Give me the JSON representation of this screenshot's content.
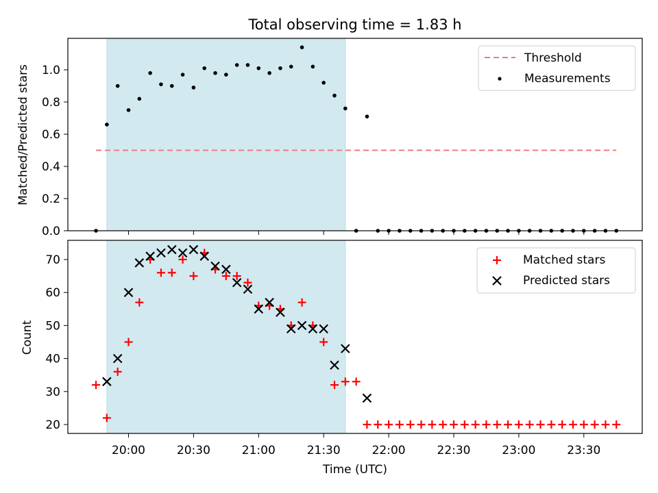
{
  "chart_data": [
    {
      "type": "scatter",
      "title": "Total observing time = 1.83 h",
      "ylabel": "Matched/Predicted stars",
      "xlabel": "",
      "ylim": [
        0,
        1.2
      ],
      "yticks": [
        "0.0",
        "0.2",
        "0.4",
        "0.6",
        "0.8",
        "1.0"
      ],
      "shaded_interval": {
        "start": "19:50",
        "end": "21:40",
        "color": "#d3e9f0"
      },
      "threshold": {
        "name": "Threshold",
        "value": 0.5,
        "x_start": "19:45",
        "x_end": "23:45",
        "color": "#f07a7a",
        "style": "dashed"
      },
      "series": [
        {
          "name": "Measurements",
          "color": "#000000",
          "marker": "dot",
          "x": [
            "19:45",
            "19:50",
            "19:55",
            "20:00",
            "20:05",
            "20:10",
            "20:15",
            "20:20",
            "20:25",
            "20:30",
            "20:35",
            "20:40",
            "20:45",
            "20:50",
            "20:55",
            "21:00",
            "21:05",
            "21:10",
            "21:15",
            "21:20",
            "21:25",
            "21:30",
            "21:35",
            "21:40",
            "21:50",
            "21:55",
            "22:00",
            "22:05",
            "22:10",
            "22:15",
            "22:20",
            "22:25",
            "22:30",
            "22:35",
            "22:40",
            "22:45",
            "22:50",
            "22:55",
            "23:00",
            "23:05",
            "23:10",
            "23:15",
            "23:20",
            "23:25",
            "23:30",
            "23:35",
            "23:40",
            "23:45"
          ],
          "y": [
            0,
            0.66,
            0.9,
            0.75,
            0.82,
            0.98,
            0.91,
            0.9,
            0.97,
            0.89,
            1.01,
            0.98,
            0.97,
            1.03,
            1.03,
            1.01,
            0.98,
            1.01,
            1.02,
            1.14,
            1.02,
            0.92,
            0.84,
            0.76,
            0.71,
            0,
            0,
            0,
            0,
            0,
            0,
            0,
            0,
            0,
            0,
            0,
            0,
            0,
            0,
            0,
            0,
            0,
            0,
            0,
            0,
            0,
            0,
            0
          ]
        }
      ],
      "extra_zero_points_x": [
        "21:45"
      ],
      "legend": {
        "placement": "upper right",
        "entries": [
          "Threshold",
          "Measurements"
        ]
      }
    },
    {
      "type": "scatter",
      "title": "",
      "ylabel": "Count",
      "xlabel": "Time (UTC)",
      "ylim": [
        17,
        76
      ],
      "yticks": [
        "20",
        "30",
        "40",
        "50",
        "60",
        "70"
      ],
      "xticks": [
        "20:00",
        "20:30",
        "21:00",
        "21:30",
        "22:00",
        "22:30",
        "23:00",
        "23:30"
      ],
      "shaded_interval": {
        "start": "19:50",
        "end": "21:40",
        "color": "#d3e9f0"
      },
      "series": [
        {
          "name": "Matched stars",
          "color": "#ff0000",
          "marker": "plus",
          "x": [
            "19:45",
            "19:50",
            "19:55",
            "20:00",
            "20:05",
            "20:10",
            "20:15",
            "20:20",
            "20:25",
            "20:30",
            "20:35",
            "20:40",
            "20:45",
            "20:50",
            "20:55",
            "21:00",
            "21:05",
            "21:10",
            "21:15",
            "21:20",
            "21:25",
            "21:30",
            "21:35",
            "21:40",
            "21:45",
            "21:50",
            "21:55",
            "22:00",
            "22:05",
            "22:10",
            "22:15",
            "22:20",
            "22:25",
            "22:30",
            "22:35",
            "22:40",
            "22:45",
            "22:50",
            "22:55",
            "23:00",
            "23:05",
            "23:10",
            "23:15",
            "23:20",
            "23:25",
            "23:30",
            "23:35",
            "23:40",
            "23:45"
          ],
          "y": [
            32,
            22,
            36,
            45,
            57,
            70,
            66,
            66,
            70,
            65,
            72,
            67,
            65,
            65,
            63,
            56,
            56,
            55,
            50,
            57,
            50,
            45,
            32,
            33,
            33,
            20,
            20,
            20,
            20,
            20,
            20,
            20,
            20,
            20,
            20,
            20,
            20,
            20,
            20,
            20,
            20,
            20,
            20,
            20,
            20,
            20,
            20,
            20,
            20
          ]
        },
        {
          "name": "Predicted stars",
          "color": "#000000",
          "marker": "x",
          "x": [
            "19:50",
            "19:55",
            "20:00",
            "20:05",
            "20:10",
            "20:15",
            "20:20",
            "20:25",
            "20:30",
            "20:35",
            "20:40",
            "20:45",
            "20:50",
            "20:55",
            "21:00",
            "21:05",
            "21:10",
            "21:15",
            "21:20",
            "21:25",
            "21:30",
            "21:35",
            "21:40",
            "21:50"
          ],
          "y": [
            33,
            40,
            60,
            69,
            71,
            72,
            73,
            72,
            73,
            71,
            68,
            67,
            63,
            61,
            55,
            57,
            54,
            49,
            50,
            49,
            49,
            38,
            43,
            28
          ]
        }
      ],
      "legend": {
        "placement": "upper right",
        "entries": [
          "Matched stars",
          "Predicted stars"
        ]
      }
    }
  ]
}
